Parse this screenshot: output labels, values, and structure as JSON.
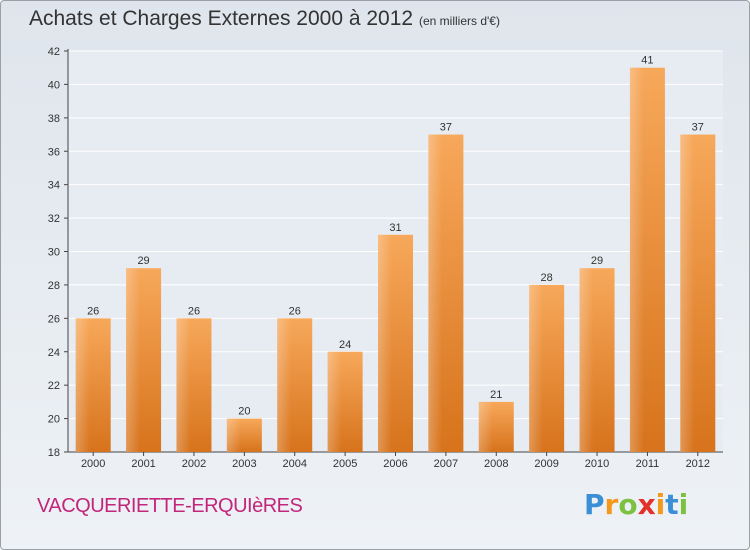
{
  "chart_data": {
    "type": "bar",
    "title": "Achats et Charges Externes 2000 à 2012",
    "subtitle": "(en milliers d'€)",
    "categories": [
      "2000",
      "2001",
      "2002",
      "2003",
      "2004",
      "2005",
      "2006",
      "2007",
      "2008",
      "2009",
      "2010",
      "2011",
      "2012"
    ],
    "values": [
      26,
      29,
      26,
      20,
      26,
      24,
      31,
      37,
      21,
      28,
      29,
      41,
      37
    ],
    "xlabel": "",
    "ylabel": "",
    "ylim": [
      18,
      42
    ],
    "yticks": [
      18,
      20,
      22,
      24,
      26,
      28,
      30,
      32,
      34,
      36,
      38,
      40,
      42
    ],
    "grid": true,
    "legend": "none",
    "bar_color": "#f0923a"
  },
  "commune": "VACQUERIETTE-ERQUIèRES",
  "logo": {
    "letters": [
      "P",
      "r",
      "o",
      "x",
      "i",
      "t",
      "i"
    ],
    "colors": [
      "#3a8fd6",
      "#f39a1e",
      "#7cc242",
      "#e2312a",
      "#f39a1e",
      "#3a8fd6",
      "#7cc242"
    ]
  }
}
